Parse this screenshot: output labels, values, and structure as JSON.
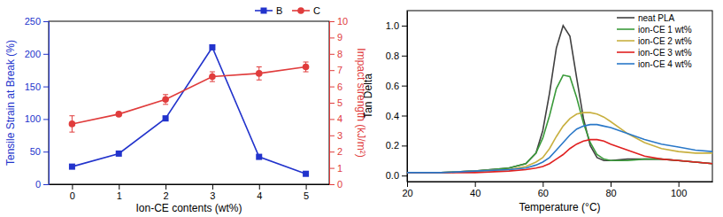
{
  "chart_data": [
    {
      "type": "line",
      "x_label": "Ion-CE contents (wt%)",
      "y_label": "Tensile Strain at Break (%)",
      "y2_label": "Impact strength (kJ/m²)",
      "x": [
        0,
        1,
        2,
        3,
        4,
        5
      ],
      "xlim": [
        -0.5,
        5.5
      ],
      "xticks": [
        0,
        1,
        2,
        3,
        4,
        5
      ],
      "ylim": [
        0,
        250
      ],
      "yticks": [
        0,
        50,
        100,
        150,
        200,
        250
      ],
      "y2lim": [
        0,
        10
      ],
      "y2ticks": [
        0,
        1,
        2,
        3,
        4,
        5,
        6,
        7,
        8,
        9,
        10
      ],
      "legend": "top-right",
      "series": [
        {
          "name": "B",
          "color": "#2233cc",
          "marker": "square",
          "line_style": "solid",
          "values": [
            27,
            47,
            101,
            210,
            42,
            16
          ]
        },
        {
          "name": "C",
          "color": "#e03c3c",
          "marker": "circle",
          "line_style": "solid",
          "axis": "y2",
          "values": [
            3.7,
            4.3,
            5.2,
            6.6,
            6.8,
            7.2
          ],
          "errors": [
            0.5,
            0.1,
            0.3,
            0.3,
            0.4,
            0.3
          ]
        }
      ]
    },
    {
      "type": "line",
      "x_label": "Temperature (°C)",
      "y_label": "Tan Delta",
      "x": [
        20,
        30,
        40,
        50,
        55,
        58,
        60,
        62,
        64,
        66,
        68,
        70,
        72,
        74,
        76,
        78,
        80,
        85,
        90,
        95,
        100,
        105,
        110
      ],
      "xlim": [
        20,
        110
      ],
      "xticks": [
        20,
        40,
        60,
        80,
        100
      ],
      "ylim": [
        -0.04,
        1.1
      ],
      "yticks": [
        {
          "value": 0,
          "label": "0.0"
        },
        {
          "value": 0.2,
          "label": "0.2"
        },
        {
          "value": 0.4,
          "label": "0.4"
        },
        {
          "value": 0.6,
          "label": "0.6"
        },
        {
          "value": 0.8,
          "label": "0.8"
        },
        {
          "value": 1,
          "label": "1.0"
        }
      ],
      "legend": "top-right",
      "series": [
        {
          "name": "neat PLA",
          "color": "#404040",
          "line_style": "solid",
          "values": [
            0.02,
            0.02,
            0.03,
            0.05,
            0.08,
            0.15,
            0.3,
            0.55,
            0.85,
            1.0,
            0.93,
            0.65,
            0.38,
            0.2,
            0.12,
            0.1,
            0.1,
            0.11,
            0.11,
            0.11,
            0.1,
            0.09,
            0.08
          ]
        },
        {
          "name": "ion-CE 1 wt%",
          "color": "#3a9a3a",
          "line_style": "solid",
          "values": [
            0.02,
            0.02,
            0.03,
            0.05,
            0.08,
            0.15,
            0.25,
            0.4,
            0.58,
            0.67,
            0.66,
            0.52,
            0.35,
            0.22,
            0.14,
            0.11,
            0.1,
            0.1,
            0.11,
            0.11,
            0.1,
            0.09,
            0.08
          ]
        },
        {
          "name": "ion-CE 2 wt%",
          "color": "#c8b040",
          "line_style": "solid",
          "values": [
            0.02,
            0.02,
            0.03,
            0.04,
            0.06,
            0.09,
            0.12,
            0.18,
            0.26,
            0.33,
            0.38,
            0.41,
            0.42,
            0.42,
            0.41,
            0.39,
            0.36,
            0.28,
            0.22,
            0.18,
            0.16,
            0.15,
            0.15
          ]
        },
        {
          "name": "ion-CE 3 wt%",
          "color": "#e02020",
          "line_style": "solid",
          "values": [
            0.02,
            0.02,
            0.02,
            0.03,
            0.04,
            0.05,
            0.06,
            0.08,
            0.11,
            0.14,
            0.18,
            0.21,
            0.23,
            0.24,
            0.24,
            0.23,
            0.21,
            0.17,
            0.13,
            0.11,
            0.1,
            0.09,
            0.08
          ]
        },
        {
          "name": "ion-CE 4 wt%",
          "color": "#2a78c8",
          "line_style": "solid",
          "values": [
            0.02,
            0.02,
            0.03,
            0.04,
            0.05,
            0.07,
            0.09,
            0.12,
            0.17,
            0.22,
            0.27,
            0.31,
            0.33,
            0.34,
            0.34,
            0.33,
            0.32,
            0.28,
            0.24,
            0.21,
            0.19,
            0.17,
            0.16
          ]
        }
      ]
    }
  ]
}
